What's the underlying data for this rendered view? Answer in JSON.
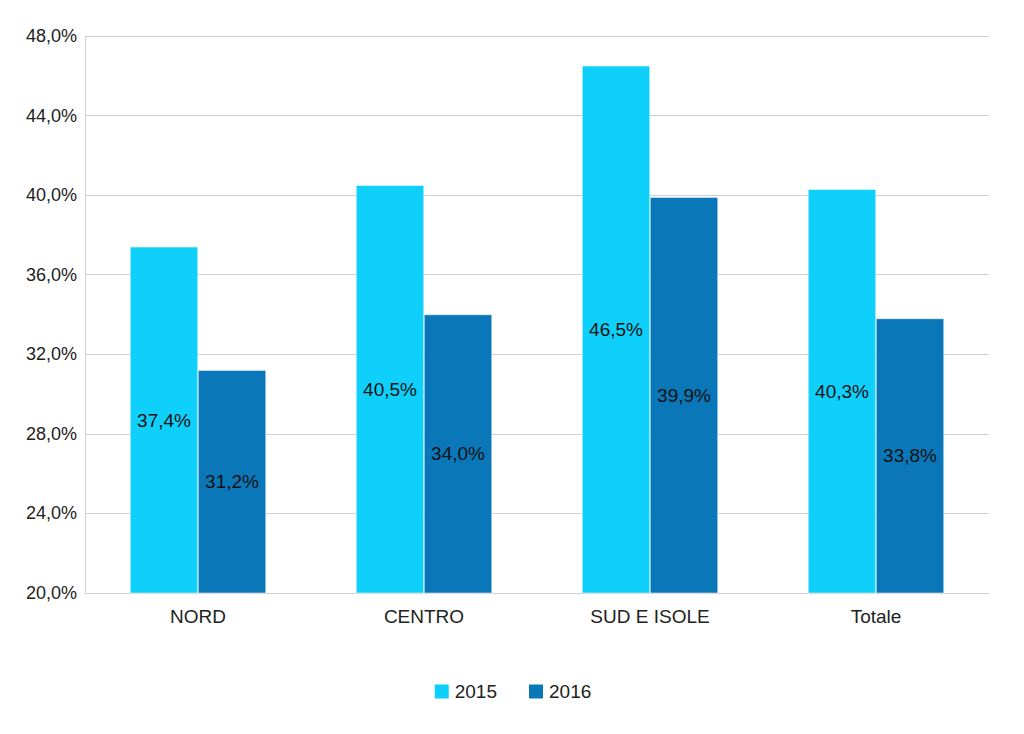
{
  "chart_data": {
    "type": "bar",
    "categories": [
      "NORD",
      "CENTRO",
      "SUD E ISOLE",
      "Totale"
    ],
    "series": [
      {
        "name": "2015",
        "color": "#0fd0fa",
        "values": [
          37.4,
          40.5,
          46.5,
          40.3
        ],
        "value_labels": [
          "37,4%",
          "40,5%",
          "46,5%",
          "40,3%"
        ]
      },
      {
        "name": "2016",
        "color": "#0a78b8",
        "values": [
          31.2,
          34.0,
          39.9,
          33.8
        ],
        "value_labels": [
          "31,2%",
          "34,0%",
          "39,9%",
          "33,8%"
        ]
      }
    ],
    "ylim": [
      20,
      48
    ],
    "yticks": [
      {
        "value": 20,
        "label": "20,0%"
      },
      {
        "value": 24,
        "label": "24,0%"
      },
      {
        "value": 28,
        "label": "28,0%"
      },
      {
        "value": 32,
        "label": "32,0%"
      },
      {
        "value": 36,
        "label": "36,0%"
      },
      {
        "value": 40,
        "label": "40,0%"
      },
      {
        "value": 44,
        "label": "44,0%"
      },
      {
        "value": 48,
        "label": "48,0%"
      }
    ],
    "grid": true,
    "legend": "bottom",
    "data_labels": true
  }
}
